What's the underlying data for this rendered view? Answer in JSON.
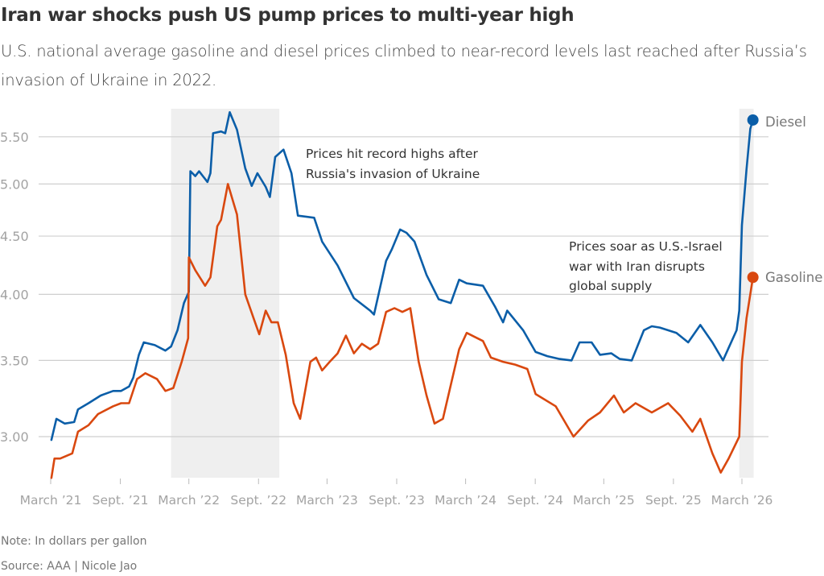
{
  "header": {
    "title": "Iran war shocks push US pump prices to multi-year high",
    "subtitle": "U.S. national average gasoline and diesel prices climbed to near-record levels last reached after Russia’s invasion of Ukraine in 2022."
  },
  "footer": {
    "note": "Note: In dollars per gallon",
    "source": "Source: AAA | Nicole Jao"
  },
  "chart_data": {
    "type": "line",
    "title": "Iran war shocks push US pump prices to multi-year high",
    "xlabel": "",
    "ylabel": "",
    "y_scale": "log",
    "ylim": [
      2.75,
      5.82
    ],
    "xlim": [
      "2021-03-01",
      "2026-04-01"
    ],
    "grid": "horizontal",
    "legend": "direct labels at line ends (right)",
    "y_ticks": [
      3.0,
      3.5,
      4.0,
      4.5,
      5.0,
      5.5
    ],
    "y_tick_labels": [
      "3.00",
      "3.50",
      "4.00",
      "4.50",
      "5.00",
      "5.50"
    ],
    "x_ticks": [
      "2021-03-01",
      "2021-09-01",
      "2022-03-01",
      "2022-09-01",
      "2023-03-01",
      "2023-09-01",
      "2024-03-01",
      "2024-09-01",
      "2025-03-01",
      "2025-09-01",
      "2026-03-01"
    ],
    "x_tick_labels": [
      "March ’21",
      "Sept. ’21",
      "March ’22",
      "Sept. ’22",
      "March ’23",
      "Sept. ’23",
      "March ’24",
      "Sept. ’24",
      "March ’25",
      "Sept. ’25",
      "March ’26"
    ],
    "shaded_periods": [
      {
        "start": "2022-01-13",
        "end": "2022-10-26"
      },
      {
        "start": "2026-02-22",
        "end": "2026-04-01"
      }
    ],
    "annotations": [
      {
        "lines": [
          "Prices hit record highs after",
          "Russia's invasion of Ukraine"
        ]
      },
      {
        "lines": [
          "Prices soar as U.S.-Israel",
          "war with Iran disrupts",
          "global supply"
        ]
      }
    ],
    "series": [
      {
        "name": "Diesel",
        "color": "#0b5ea8",
        "points": [
          [
            "2021-03-03",
            2.98
          ],
          [
            "2021-03-16",
            3.11
          ],
          [
            "2021-04-07",
            3.08
          ],
          [
            "2021-05-02",
            3.09
          ],
          [
            "2021-05-12",
            3.17
          ],
          [
            "2021-06-09",
            3.21
          ],
          [
            "2021-07-11",
            3.26
          ],
          [
            "2021-08-13",
            3.29
          ],
          [
            "2021-09-03",
            3.29
          ],
          [
            "2021-09-24",
            3.32
          ],
          [
            "2021-10-05",
            3.38
          ],
          [
            "2021-10-20",
            3.54
          ],
          [
            "2021-11-02",
            3.63
          ],
          [
            "2021-12-01",
            3.61
          ],
          [
            "2021-12-29",
            3.57
          ],
          [
            "2022-01-13",
            3.6
          ],
          [
            "2022-01-30",
            3.72
          ],
          [
            "2022-02-16",
            3.93
          ],
          [
            "2022-03-01",
            4.02
          ],
          [
            "2022-03-05",
            5.13
          ],
          [
            "2022-03-18",
            5.08
          ],
          [
            "2022-03-28",
            5.13
          ],
          [
            "2022-04-19",
            5.02
          ],
          [
            "2022-04-27",
            5.11
          ],
          [
            "2022-05-04",
            5.54
          ],
          [
            "2022-05-25",
            5.56
          ],
          [
            "2022-06-05",
            5.54
          ],
          [
            "2022-06-17",
            5.78
          ],
          [
            "2022-07-06",
            5.58
          ],
          [
            "2022-07-28",
            5.16
          ],
          [
            "2022-08-14",
            4.98
          ],
          [
            "2022-08-29",
            5.11
          ],
          [
            "2022-09-20",
            4.97
          ],
          [
            "2022-10-01",
            4.87
          ],
          [
            "2022-10-15",
            5.28
          ],
          [
            "2022-11-06",
            5.36
          ],
          [
            "2022-11-27",
            5.11
          ],
          [
            "2022-12-14",
            4.69
          ],
          [
            "2023-01-26",
            4.67
          ],
          [
            "2023-02-16",
            4.45
          ],
          [
            "2023-03-29",
            4.24
          ],
          [
            "2023-05-11",
            3.97
          ],
          [
            "2023-06-23",
            3.87
          ],
          [
            "2023-07-03",
            3.84
          ],
          [
            "2023-08-04",
            4.28
          ],
          [
            "2023-08-19",
            4.38
          ],
          [
            "2023-09-10",
            4.56
          ],
          [
            "2023-09-27",
            4.53
          ],
          [
            "2023-10-18",
            4.45
          ],
          [
            "2023-11-19",
            4.16
          ],
          [
            "2023-12-21",
            3.96
          ],
          [
            "2024-01-22",
            3.93
          ],
          [
            "2024-02-13",
            4.12
          ],
          [
            "2024-03-04",
            4.09
          ],
          [
            "2024-04-16",
            4.07
          ],
          [
            "2024-05-18",
            3.9
          ],
          [
            "2024-06-08",
            3.78
          ],
          [
            "2024-06-19",
            3.87
          ],
          [
            "2024-07-31",
            3.72
          ],
          [
            "2024-09-02",
            3.56
          ],
          [
            "2024-10-03",
            3.53
          ],
          [
            "2024-11-04",
            3.51
          ],
          [
            "2024-12-06",
            3.5
          ],
          [
            "2024-12-27",
            3.63
          ],
          [
            "2025-01-28",
            3.63
          ],
          [
            "2025-02-19",
            3.54
          ],
          [
            "2025-03-21",
            3.55
          ],
          [
            "2025-04-12",
            3.51
          ],
          [
            "2025-05-14",
            3.5
          ],
          [
            "2025-06-15",
            3.72
          ],
          [
            "2025-07-06",
            3.75
          ],
          [
            "2025-07-27",
            3.74
          ],
          [
            "2025-09-09",
            3.7
          ],
          [
            "2025-10-10",
            3.63
          ],
          [
            "2025-11-11",
            3.76
          ],
          [
            "2025-12-13",
            3.63
          ],
          [
            "2026-01-10",
            3.5
          ],
          [
            "2026-01-25",
            3.59
          ],
          [
            "2026-02-15",
            3.72
          ],
          [
            "2026-02-22",
            3.87
          ],
          [
            "2026-03-01",
            4.6
          ],
          [
            "2026-03-13",
            5.15
          ],
          [
            "2026-03-23",
            5.59
          ],
          [
            "2026-03-30",
            5.69
          ]
        ]
      },
      {
        "name": "Gasoline",
        "color": "#d9480f",
        "points": [
          [
            "2021-03-03",
            2.76
          ],
          [
            "2021-03-11",
            2.87
          ],
          [
            "2021-03-26",
            2.87
          ],
          [
            "2021-04-27",
            2.9
          ],
          [
            "2021-05-12",
            3.03
          ],
          [
            "2021-06-09",
            3.07
          ],
          [
            "2021-07-04",
            3.14
          ],
          [
            "2021-08-13",
            3.19
          ],
          [
            "2021-09-03",
            3.21
          ],
          [
            "2021-09-24",
            3.21
          ],
          [
            "2021-10-15",
            3.37
          ],
          [
            "2021-11-06",
            3.41
          ],
          [
            "2021-12-07",
            3.37
          ],
          [
            "2021-12-29",
            3.29
          ],
          [
            "2022-01-19",
            3.31
          ],
          [
            "2022-02-10",
            3.49
          ],
          [
            "2022-02-27",
            3.66
          ],
          [
            "2022-03-01",
            4.31
          ],
          [
            "2022-03-18",
            4.2
          ],
          [
            "2022-04-13",
            4.07
          ],
          [
            "2022-04-27",
            4.14
          ],
          [
            "2022-05-15",
            4.59
          ],
          [
            "2022-05-25",
            4.65
          ],
          [
            "2022-06-12",
            5.0
          ],
          [
            "2022-07-06",
            4.7
          ],
          [
            "2022-07-28",
            4.0
          ],
          [
            "2022-08-19",
            3.81
          ],
          [
            "2022-09-03",
            3.69
          ],
          [
            "2022-09-20",
            3.87
          ],
          [
            "2022-10-05",
            3.78
          ],
          [
            "2022-10-22",
            3.78
          ],
          [
            "2022-11-12",
            3.54
          ],
          [
            "2022-12-03",
            3.21
          ],
          [
            "2022-12-20",
            3.11
          ],
          [
            "2023-01-16",
            3.49
          ],
          [
            "2023-01-31",
            3.52
          ],
          [
            "2023-02-16",
            3.43
          ],
          [
            "2023-03-08",
            3.49
          ],
          [
            "2023-03-29",
            3.55
          ],
          [
            "2023-04-20",
            3.68
          ],
          [
            "2023-05-11",
            3.55
          ],
          [
            "2023-06-01",
            3.62
          ],
          [
            "2023-06-23",
            3.58
          ],
          [
            "2023-07-14",
            3.62
          ],
          [
            "2023-08-04",
            3.86
          ],
          [
            "2023-08-26",
            3.89
          ],
          [
            "2023-09-16",
            3.86
          ],
          [
            "2023-10-07",
            3.89
          ],
          [
            "2023-10-29",
            3.49
          ],
          [
            "2023-11-19",
            3.26
          ],
          [
            "2023-12-10",
            3.08
          ],
          [
            "2024-01-01",
            3.11
          ],
          [
            "2024-01-22",
            3.33
          ],
          [
            "2024-02-13",
            3.58
          ],
          [
            "2024-03-04",
            3.7
          ],
          [
            "2024-03-25",
            3.67
          ],
          [
            "2024-04-16",
            3.64
          ],
          [
            "2024-05-07",
            3.52
          ],
          [
            "2024-06-08",
            3.49
          ],
          [
            "2024-07-10",
            3.47
          ],
          [
            "2024-08-11",
            3.44
          ],
          [
            "2024-09-02",
            3.27
          ],
          [
            "2024-10-25",
            3.19
          ],
          [
            "2024-12-11",
            3.0
          ],
          [
            "2025-01-19",
            3.1
          ],
          [
            "2025-02-19",
            3.15
          ],
          [
            "2025-03-28",
            3.26
          ],
          [
            "2025-04-23",
            3.15
          ],
          [
            "2025-05-24",
            3.21
          ],
          [
            "2025-07-06",
            3.15
          ],
          [
            "2025-08-18",
            3.21
          ],
          [
            "2025-09-19",
            3.13
          ],
          [
            "2025-10-21",
            3.03
          ],
          [
            "2025-11-11",
            3.11
          ],
          [
            "2025-12-13",
            2.9
          ],
          [
            "2026-01-04",
            2.79
          ],
          [
            "2026-01-25",
            2.87
          ],
          [
            "2026-02-22",
            3.0
          ],
          [
            "2026-03-01",
            3.49
          ],
          [
            "2026-03-13",
            3.81
          ],
          [
            "2026-03-30",
            4.14
          ]
        ]
      }
    ]
  }
}
